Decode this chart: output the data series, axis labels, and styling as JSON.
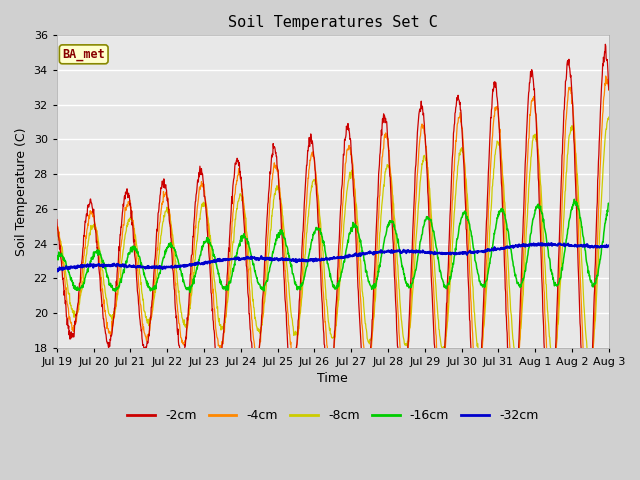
{
  "title": "Soil Temperatures Set C",
  "xlabel": "Time",
  "ylabel": "Soil Temperature (C)",
  "ylim": [
    18,
    36
  ],
  "yticks": [
    18,
    20,
    22,
    24,
    26,
    28,
    30,
    32,
    34,
    36
  ],
  "xtick_labels": [
    "Jul 19",
    "Jul 20",
    "Jul 21",
    "Jul 22",
    "Jul 23",
    "Jul 24",
    "Jul 25",
    "Jul 26",
    "Jul 27",
    "Jul 28",
    "Jul 29",
    "Jul 30",
    "Jul 31",
    "Aug 1",
    "Aug 2",
    "Aug 3"
  ],
  "colors": {
    "-2cm": "#cc0000",
    "-4cm": "#ff8800",
    "-8cm": "#cccc00",
    "-16cm": "#00cc00",
    "-32cm": "#0000cc"
  },
  "annotation_text": "BA_met",
  "annotation_color": "#880000",
  "annotation_bg": "#ffffcc",
  "annotation_border": "#888800",
  "fig_bg": "#d0d0d0",
  "plot_bg": "#e8e8e8",
  "legend_entries": [
    "-2cm",
    "-4cm",
    "-8cm",
    "-16cm",
    "-32cm"
  ]
}
